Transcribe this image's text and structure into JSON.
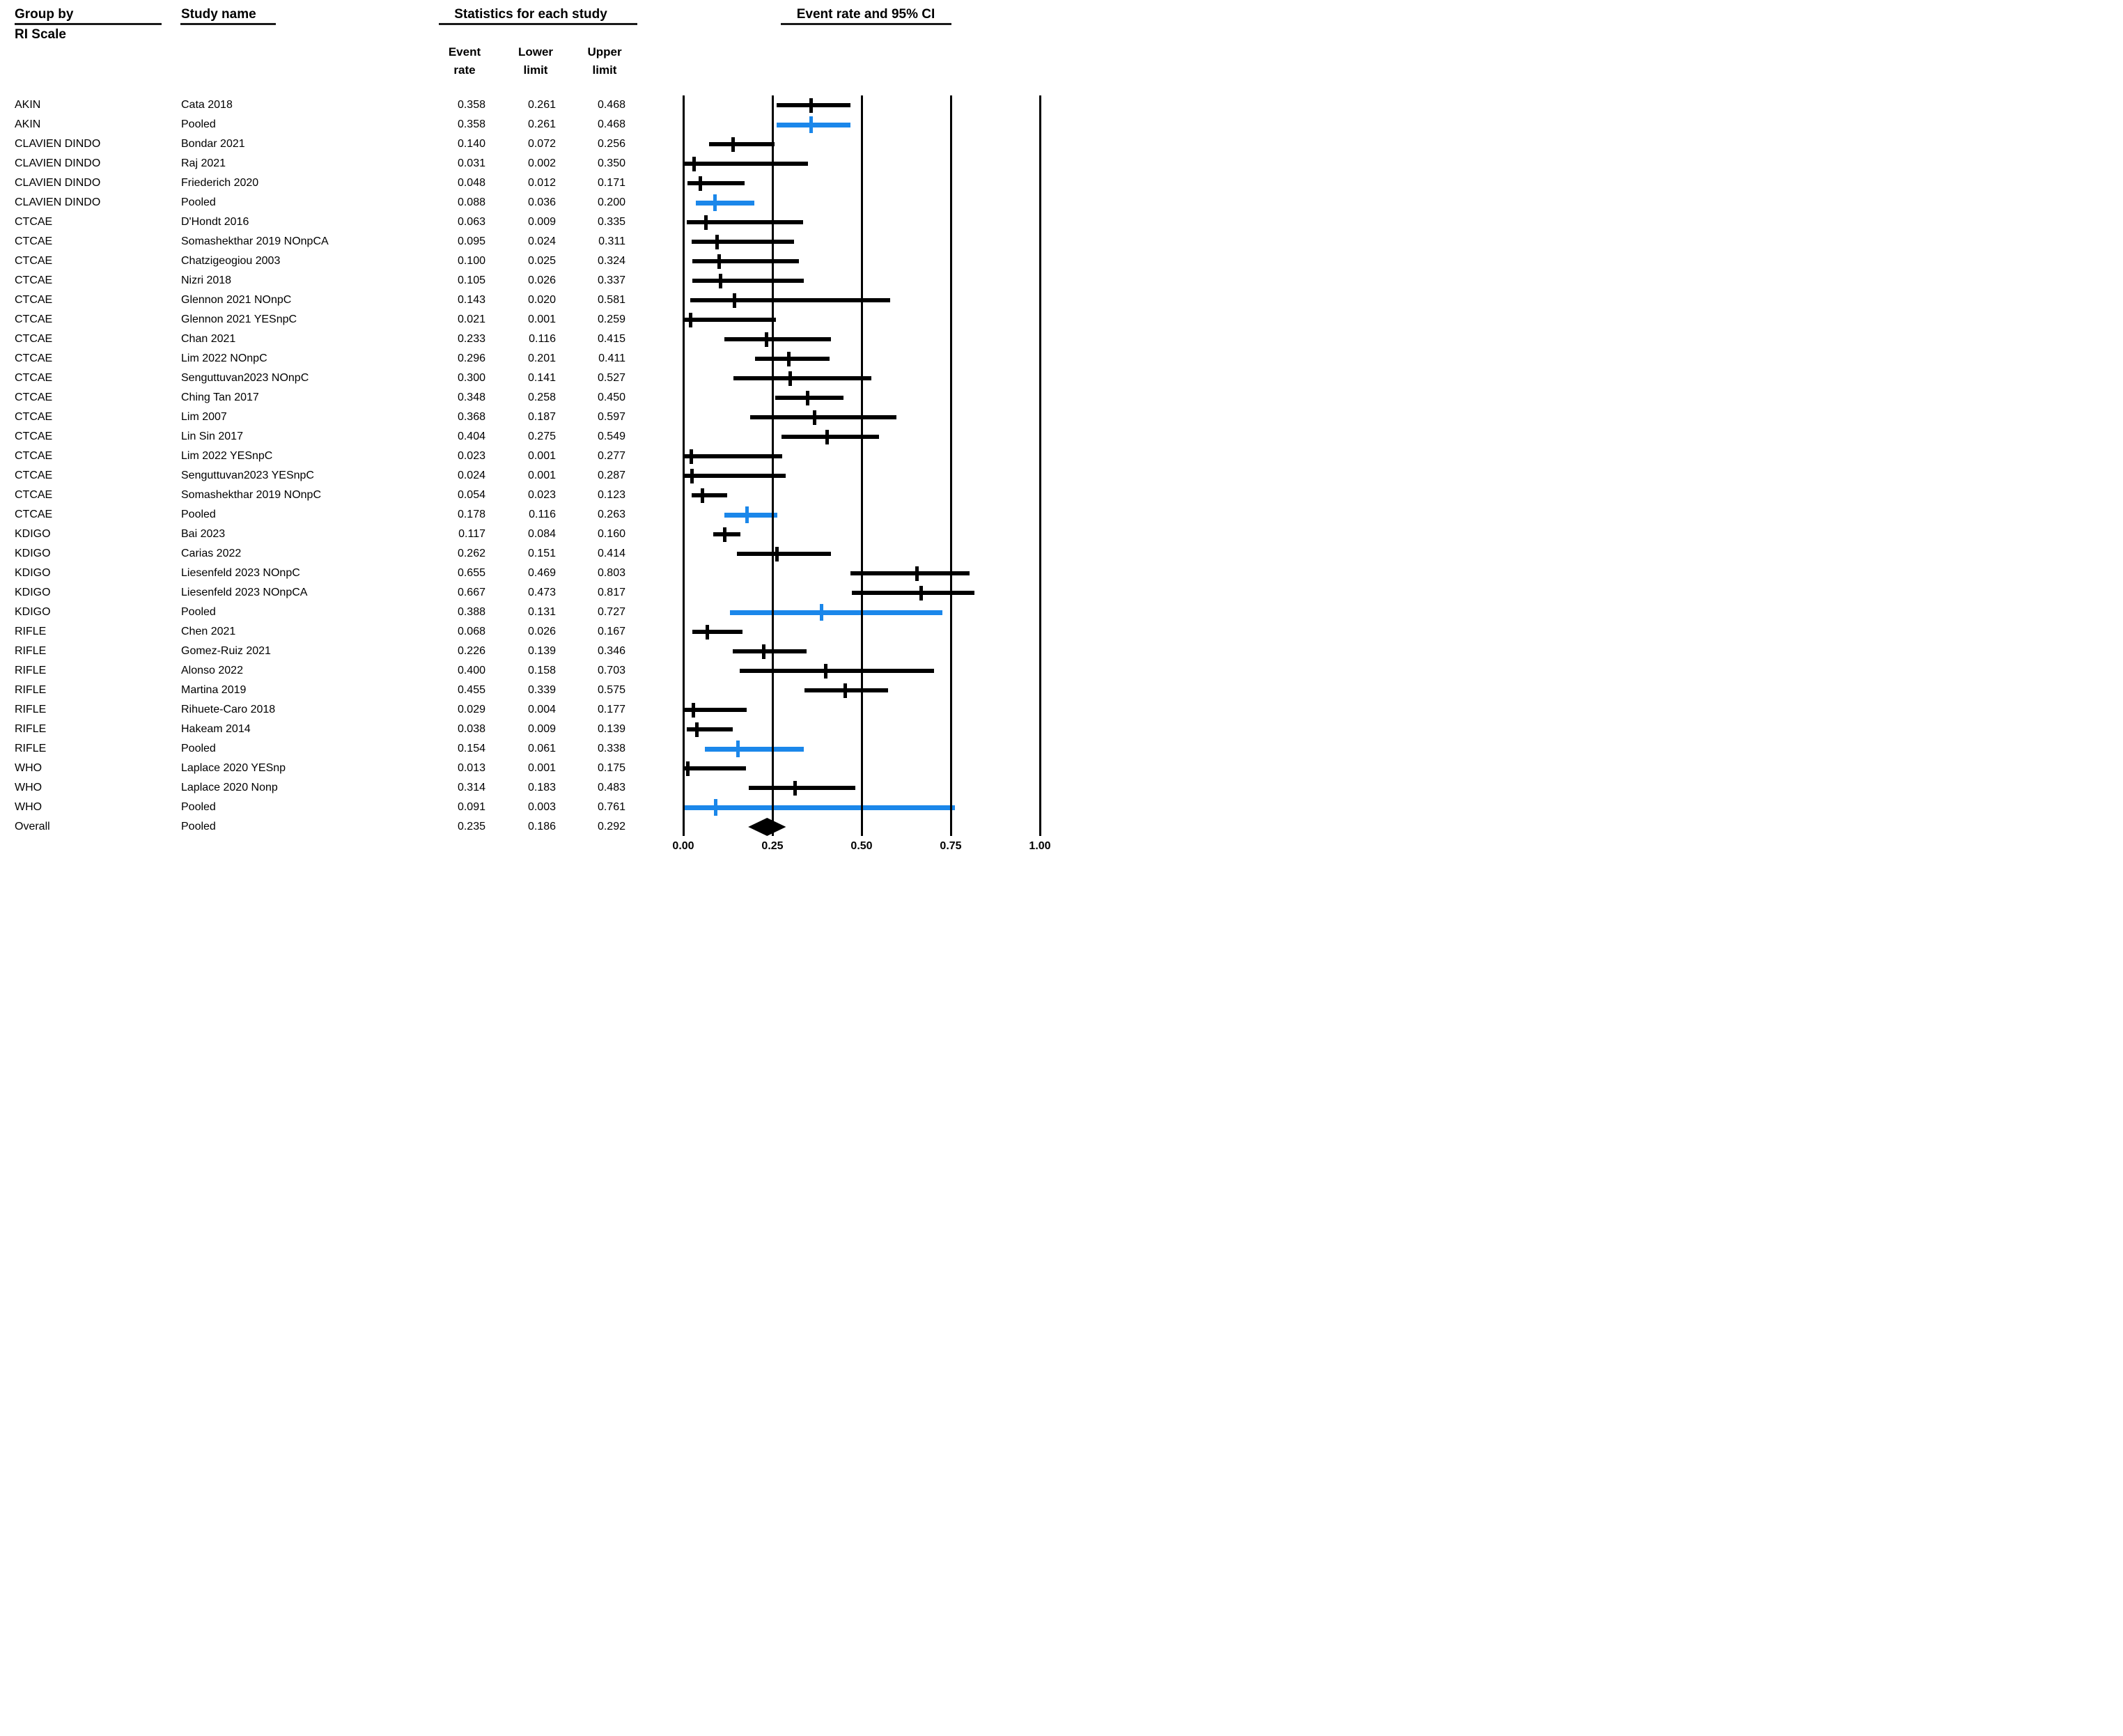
{
  "headers": {
    "group_by": "Group by",
    "group_by_sub": "RI Scale",
    "study_name": "Study name",
    "stats": "Statistics for each study",
    "plot": "Event rate and 95% CI",
    "col_event": "Event\nrate",
    "col_lower": "Lower\nlimit",
    "col_upper": "Upper\nlimit"
  },
  "colors": {
    "study_black": "#000000",
    "pooled_blue": "#1B87EA",
    "rule_dark": "#1a1a1a"
  },
  "chart_data": {
    "type": "forest",
    "title": "Event rate and 95% CI",
    "xlabel": "Event rate",
    "xlim": [
      0.0,
      1.0
    ],
    "axis_ticks": [
      "0.00",
      "0.25",
      "0.50",
      "0.75",
      "1.00"
    ],
    "axis_values": [
      0,
      0.25,
      0.5,
      0.75,
      1.0
    ],
    "grid": "vertical-lines-at-ticks",
    "legend_position": "none",
    "rows": [
      {
        "group": "AKIN",
        "study": "Cata 2018",
        "event_rate": "0.358",
        "lower": "0.261",
        "upper": "0.468",
        "pooled": false,
        "overall": false
      },
      {
        "group": "AKIN",
        "study": "Pooled",
        "event_rate": "0.358",
        "lower": "0.261",
        "upper": "0.468",
        "pooled": true,
        "overall": false
      },
      {
        "group": "CLAVIEN DINDO",
        "study": "Bondar 2021",
        "event_rate": "0.140",
        "lower": "0.072",
        "upper": "0.256",
        "pooled": false,
        "overall": false
      },
      {
        "group": "CLAVIEN DINDO",
        "study": "Raj 2021",
        "event_rate": "0.031",
        "lower": "0.002",
        "upper": "0.350",
        "pooled": false,
        "overall": false
      },
      {
        "group": "CLAVIEN DINDO",
        "study": "Friederich 2020",
        "event_rate": "0.048",
        "lower": "0.012",
        "upper": "0.171",
        "pooled": false,
        "overall": false
      },
      {
        "group": "CLAVIEN DINDO",
        "study": "Pooled",
        "event_rate": "0.088",
        "lower": "0.036",
        "upper": "0.200",
        "pooled": true,
        "overall": false
      },
      {
        "group": "CTCAE",
        "study": "D'Hondt 2016",
        "event_rate": "0.063",
        "lower": "0.009",
        "upper": "0.335",
        "pooled": false,
        "overall": false
      },
      {
        "group": "CTCAE",
        "study": "Somashekthar 2019 NOnpCA",
        "event_rate": "0.095",
        "lower": "0.024",
        "upper": "0.311",
        "pooled": false,
        "overall": false
      },
      {
        "group": "CTCAE",
        "study": "Chatzigeogiou 2003",
        "event_rate": "0.100",
        "lower": "0.025",
        "upper": "0.324",
        "pooled": false,
        "overall": false
      },
      {
        "group": "CTCAE",
        "study": "Nizri 2018",
        "event_rate": "0.105",
        "lower": "0.026",
        "upper": "0.337",
        "pooled": false,
        "overall": false
      },
      {
        "group": "CTCAE",
        "study": "Glennon 2021 NOnpC",
        "event_rate": "0.143",
        "lower": "0.020",
        "upper": "0.581",
        "pooled": false,
        "overall": false
      },
      {
        "group": "CTCAE",
        "study": "Glennon 2021 YESnpC",
        "event_rate": "0.021",
        "lower": "0.001",
        "upper": "0.259",
        "pooled": false,
        "overall": false
      },
      {
        "group": "CTCAE",
        "study": "Chan 2021",
        "event_rate": "0.233",
        "lower": "0.116",
        "upper": "0.415",
        "pooled": false,
        "overall": false
      },
      {
        "group": "CTCAE",
        "study": "Lim 2022 NOnpC",
        "event_rate": "0.296",
        "lower": "0.201",
        "upper": "0.411",
        "pooled": false,
        "overall": false
      },
      {
        "group": "CTCAE",
        "study": "Senguttuvan2023 NOnpC",
        "event_rate": "0.300",
        "lower": "0.141",
        "upper": "0.527",
        "pooled": false,
        "overall": false
      },
      {
        "group": "CTCAE",
        "study": "Ching Tan 2017",
        "event_rate": "0.348",
        "lower": "0.258",
        "upper": "0.450",
        "pooled": false,
        "overall": false
      },
      {
        "group": "CTCAE",
        "study": "Lim 2007",
        "event_rate": "0.368",
        "lower": "0.187",
        "upper": "0.597",
        "pooled": false,
        "overall": false
      },
      {
        "group": "CTCAE",
        "study": "Lin Sin 2017",
        "event_rate": "0.404",
        "lower": "0.275",
        "upper": "0.549",
        "pooled": false,
        "overall": false
      },
      {
        "group": "CTCAE",
        "study": "Lim 2022 YESnpC",
        "event_rate": "0.023",
        "lower": "0.001",
        "upper": "0.277",
        "pooled": false,
        "overall": false
      },
      {
        "group": "CTCAE",
        "study": "Senguttuvan2023 YESnpC",
        "event_rate": "0.024",
        "lower": "0.001",
        "upper": "0.287",
        "pooled": false,
        "overall": false
      },
      {
        "group": "CTCAE",
        "study": "Somashekthar 2019 NOnpC",
        "event_rate": "0.054",
        "lower": "0.023",
        "upper": "0.123",
        "pooled": false,
        "overall": false
      },
      {
        "group": "CTCAE",
        "study": "Pooled",
        "event_rate": "0.178",
        "lower": "0.116",
        "upper": "0.263",
        "pooled": true,
        "overall": false
      },
      {
        "group": "KDIGO",
        "study": "Bai 2023",
        "event_rate": "0.117",
        "lower": "0.084",
        "upper": "0.160",
        "pooled": false,
        "overall": false
      },
      {
        "group": "KDIGO",
        "study": "Carias 2022",
        "event_rate": "0.262",
        "lower": "0.151",
        "upper": "0.414",
        "pooled": false,
        "overall": false
      },
      {
        "group": "KDIGO",
        "study": "Liesenfeld 2023 NOnpC",
        "event_rate": "0.655",
        "lower": "0.469",
        "upper": "0.803",
        "pooled": false,
        "overall": false
      },
      {
        "group": "KDIGO",
        "study": "Liesenfeld 2023 NOnpCA",
        "event_rate": "0.667",
        "lower": "0.473",
        "upper": "0.817",
        "pooled": false,
        "overall": false
      },
      {
        "group": "KDIGO",
        "study": "Pooled",
        "event_rate": "0.388",
        "lower": "0.131",
        "upper": "0.727",
        "pooled": true,
        "overall": false
      },
      {
        "group": "RIFLE",
        "study": "Chen 2021",
        "event_rate": "0.068",
        "lower": "0.026",
        "upper": "0.167",
        "pooled": false,
        "overall": false
      },
      {
        "group": "RIFLE",
        "study": "Gomez-Ruiz 2021",
        "event_rate": "0.226",
        "lower": "0.139",
        "upper": "0.346",
        "pooled": false,
        "overall": false
      },
      {
        "group": "RIFLE",
        "study": "Alonso 2022",
        "event_rate": "0.400",
        "lower": "0.158",
        "upper": "0.703",
        "pooled": false,
        "overall": false
      },
      {
        "group": "RIFLE",
        "study": "Martina 2019",
        "event_rate": "0.455",
        "lower": "0.339",
        "upper": "0.575",
        "pooled": false,
        "overall": false
      },
      {
        "group": "RIFLE",
        "study": "Rihuete-Caro 2018",
        "event_rate": "0.029",
        "lower": "0.004",
        "upper": "0.177",
        "pooled": false,
        "overall": false
      },
      {
        "group": "RIFLE",
        "study": "Hakeam 2014",
        "event_rate": "0.038",
        "lower": "0.009",
        "upper": "0.139",
        "pooled": false,
        "overall": false
      },
      {
        "group": "RIFLE",
        "study": "Pooled",
        "event_rate": "0.154",
        "lower": "0.061",
        "upper": "0.338",
        "pooled": true,
        "overall": false
      },
      {
        "group": "WHO",
        "study": "Laplace 2020 YESnp",
        "event_rate": "0.013",
        "lower": "0.001",
        "upper": "0.175",
        "pooled": false,
        "overall": false
      },
      {
        "group": "WHO",
        "study": "Laplace 2020 Nonp",
        "event_rate": "0.314",
        "lower": "0.183",
        "upper": "0.483",
        "pooled": false,
        "overall": false
      },
      {
        "group": "WHO",
        "study": "Pooled",
        "event_rate": "0.091",
        "lower": "0.003",
        "upper": "0.761",
        "pooled": true,
        "overall": false
      },
      {
        "group": "Overall",
        "study": "Pooled",
        "event_rate": "0.235",
        "lower": "0.186",
        "upper": "0.292",
        "pooled": true,
        "overall": true
      }
    ]
  }
}
